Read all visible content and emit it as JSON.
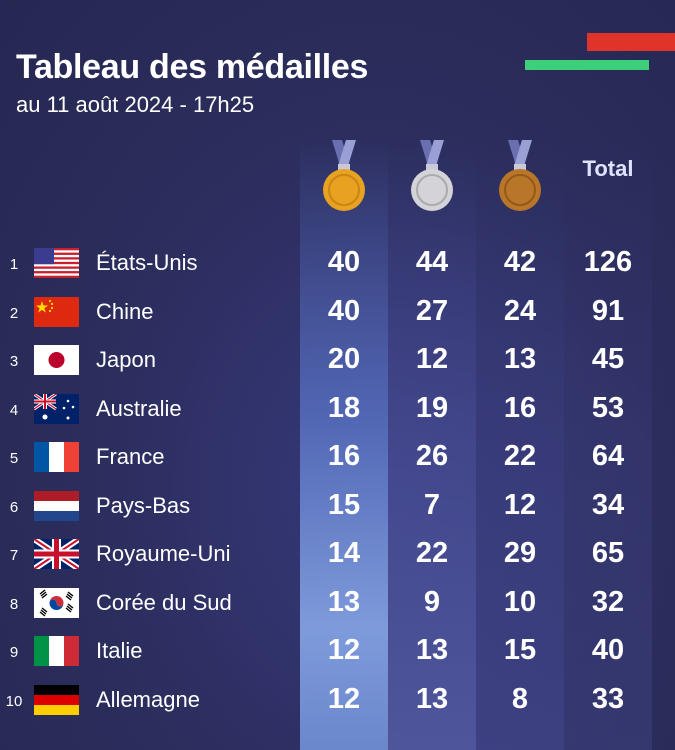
{
  "header": {
    "title": "Tableau des médailles",
    "subtitle": "au 11 août 2024 - 17h25",
    "total_label": "Total"
  },
  "colors": {
    "background": "#2b2d5c",
    "gold": "#e8a21f",
    "silver": "#c9c9c9",
    "bronze": "#b87628",
    "accent_red": "#e0342b",
    "accent_green": "#3ecf7a"
  },
  "icons": [
    "gold-medal-icon",
    "silver-medal-icon",
    "bronze-medal-icon"
  ],
  "chart_data": {
    "type": "table",
    "title": "Tableau des médailles",
    "subtitle": "au 11 août 2024 - 17h25",
    "columns": [
      "Or",
      "Argent",
      "Bronze",
      "Total"
    ],
    "rows": [
      {
        "rank": "1",
        "country": "États-Unis",
        "flag": "usa",
        "gold": 40,
        "silver": 44,
        "bronze": 42,
        "total": 126
      },
      {
        "rank": "2",
        "country": "Chine",
        "flag": "china",
        "gold": 40,
        "silver": 27,
        "bronze": 24,
        "total": 91
      },
      {
        "rank": "3",
        "country": "Japon",
        "flag": "japan",
        "gold": 20,
        "silver": 12,
        "bronze": 13,
        "total": 45
      },
      {
        "rank": "4",
        "country": "Australie",
        "flag": "australia",
        "gold": 18,
        "silver": 19,
        "bronze": 16,
        "total": 53
      },
      {
        "rank": "5",
        "country": "France",
        "flag": "france",
        "gold": 16,
        "silver": 26,
        "bronze": 22,
        "total": 64
      },
      {
        "rank": "6",
        "country": "Pays-Bas",
        "flag": "netherlands",
        "gold": 15,
        "silver": 7,
        "bronze": 12,
        "total": 34
      },
      {
        "rank": "7",
        "country": "Royaume-Uni",
        "flag": "uk",
        "gold": 14,
        "silver": 22,
        "bronze": 29,
        "total": 65
      },
      {
        "rank": "8",
        "country": "Corée du Sud",
        "flag": "south-korea",
        "gold": 13,
        "silver": 9,
        "bronze": 10,
        "total": 32
      },
      {
        "rank": "9",
        "country": "Italie",
        "flag": "italy",
        "gold": 12,
        "silver": 13,
        "bronze": 15,
        "total": 40
      },
      {
        "rank": "10",
        "country": "Allemagne",
        "flag": "germany",
        "gold": 12,
        "silver": 13,
        "bronze": 8,
        "total": 33
      }
    ]
  }
}
